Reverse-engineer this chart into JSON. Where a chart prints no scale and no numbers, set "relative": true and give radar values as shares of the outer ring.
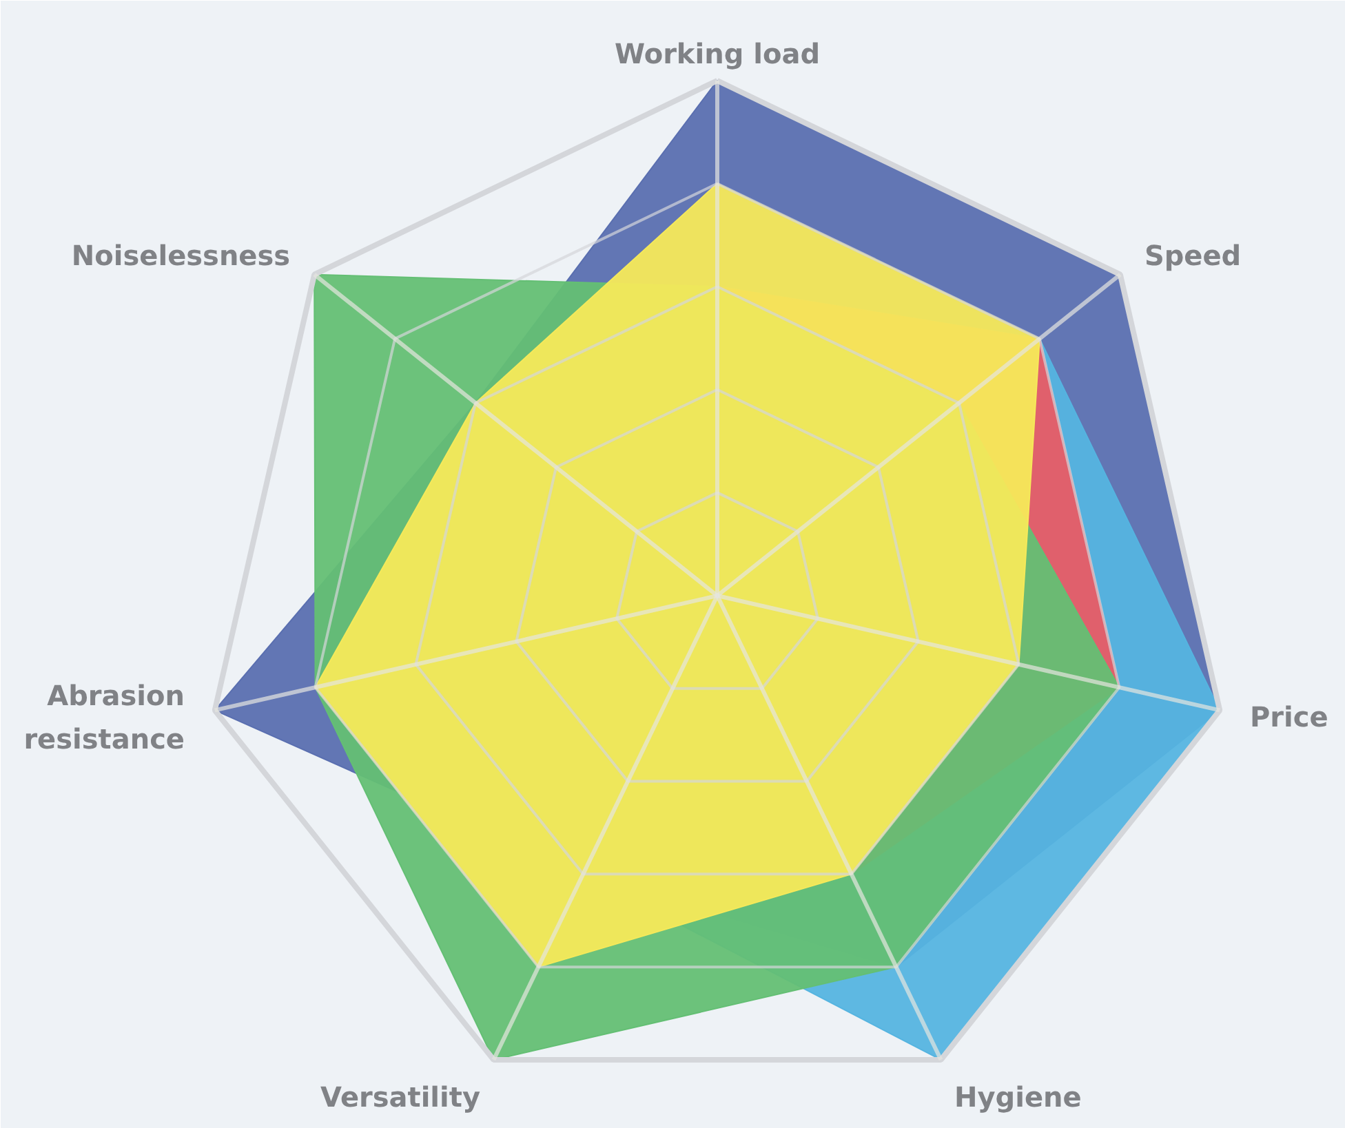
{
  "chart_data": {
    "type": "radar",
    "relative": true,
    "grid": true,
    "categories": [
      "Working load",
      "Speed",
      "Price",
      "Hygiene",
      "Versatility",
      "Abrasion\nresistance",
      "Noiselessness"
    ],
    "series": [
      {
        "color": "#5a6fb0",
        "values": [
          1,
          1,
          1,
          0.8,
          0.6,
          1,
          0.6
        ]
      },
      {
        "color": "#55b4e0",
        "values": [
          0.6,
          0.8,
          1,
          1,
          0.6,
          0.6,
          0.4
        ]
      },
      {
        "color": "#e85c65",
        "values": [
          0.6,
          0.8,
          0.8,
          0.6,
          0.6,
          0.6,
          0.4
        ]
      },
      {
        "color": "#64bf74",
        "values": [
          0.6,
          0.6,
          0.8,
          0.8,
          1,
          0.8,
          1
        ]
      },
      {
        "color": "#f5e95a",
        "values": [
          0.8,
          0.8,
          0.6,
          0.6,
          0.8,
          0.8,
          0.6
        ]
      }
    ]
  }
}
